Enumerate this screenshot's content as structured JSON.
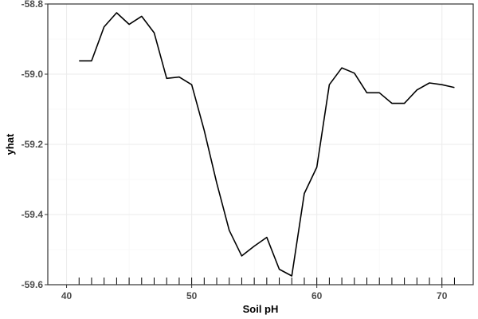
{
  "chart_data": {
    "type": "line",
    "title": "",
    "xlabel": "Soil pH",
    "ylabel": "yhat",
    "xlim": [
      38.5,
      72.5
    ],
    "ylim": [
      -59.6,
      -58.8
    ],
    "x_ticks": [
      40,
      50,
      60,
      70
    ],
    "y_ticks": [
      -59.6,
      -59.4,
      -59.2,
      -59.0,
      -58.8
    ],
    "x_tick_labels": [
      "40",
      "50",
      "60",
      "70"
    ],
    "y_tick_labels": [
      "-59.6",
      "-59.4",
      "-59.2",
      "-59.0",
      "-58.8"
    ],
    "grid": true,
    "rug": [
      41,
      42,
      43,
      44,
      45,
      46,
      47,
      48,
      49,
      50,
      51,
      52,
      53,
      54,
      55,
      56,
      57,
      58,
      59,
      60,
      61,
      62,
      63,
      64,
      65,
      66,
      67,
      68,
      69,
      70,
      71
    ],
    "series": [
      {
        "color": "#000000",
        "x": [
          41,
          42,
          43,
          44,
          45,
          46,
          47,
          48,
          49,
          50,
          51,
          52,
          53,
          54,
          55,
          56,
          57,
          58,
          59,
          60,
          61,
          62,
          63,
          64,
          65,
          66,
          67,
          68,
          69,
          70,
          71
        ],
        "y": [
          -58.962,
          -58.962,
          -58.865,
          -58.825,
          -58.858,
          -58.835,
          -58.882,
          -59.012,
          -59.008,
          -59.03,
          -59.16,
          -59.31,
          -59.445,
          -59.518,
          -59.49,
          -59.465,
          -59.556,
          -59.575,
          -59.34,
          -59.265,
          -59.03,
          -58.982,
          -58.997,
          -59.053,
          -59.053,
          -59.083,
          -59.083,
          -59.045,
          -59.025,
          -59.03,
          -59.038
        ]
      }
    ]
  }
}
